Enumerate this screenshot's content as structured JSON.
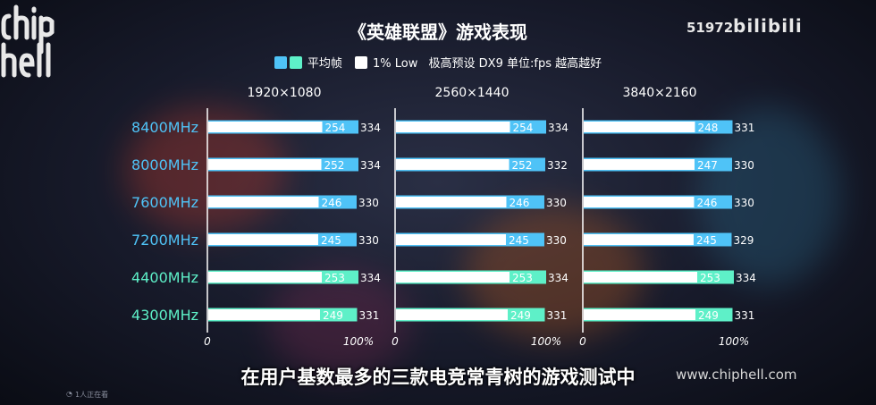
{
  "overlay": {
    "views": "51972",
    "logo": "bilibili",
    "subtitle": "在用户基数最多的三款电竞常青树的游戏测试中",
    "watermark": "www.chiphell.com",
    "viewers": "1人正在看"
  },
  "colors": {
    "ddr5": "#4fc3f7",
    "ddr4": "#5ef0c8",
    "low": "#ffffff",
    "label_ddr5": "#4fc3f7",
    "label_ddr4": "#5ef0c8"
  },
  "chart_data": {
    "type": "bar",
    "title": "《英雄联盟》游戏表现",
    "legend": {
      "avg": "平均帧",
      "low": "1% Low",
      "note": "极高预设 DX9 单位:fps 越高越好"
    },
    "categories": [
      "8400MHz",
      "8000MHz",
      "7600MHz",
      "7200MHz",
      "4400MHz",
      "4300MHz"
    ],
    "category_color_group": [
      "ddr5",
      "ddr5",
      "ddr5",
      "ddr5",
      "ddr4",
      "ddr4"
    ],
    "axis": {
      "min_label": "0",
      "max_label": "100%"
    },
    "panels": [
      {
        "resolution": "1920×1080",
        "avg": [
          254,
          252,
          246,
          245,
          253,
          249
        ],
        "low": [
          334,
          334,
          330,
          330,
          334,
          331
        ]
      },
      {
        "resolution": "2560×1440",
        "avg": [
          254,
          252,
          246,
          245,
          253,
          249
        ],
        "low": [
          334,
          332,
          330,
          330,
          334,
          331
        ]
      },
      {
        "resolution": "3840×2160",
        "avg": [
          248,
          247,
          246,
          245,
          253,
          249
        ],
        "low": [
          331,
          330,
          330,
          329,
          334,
          331
        ]
      }
    ]
  }
}
